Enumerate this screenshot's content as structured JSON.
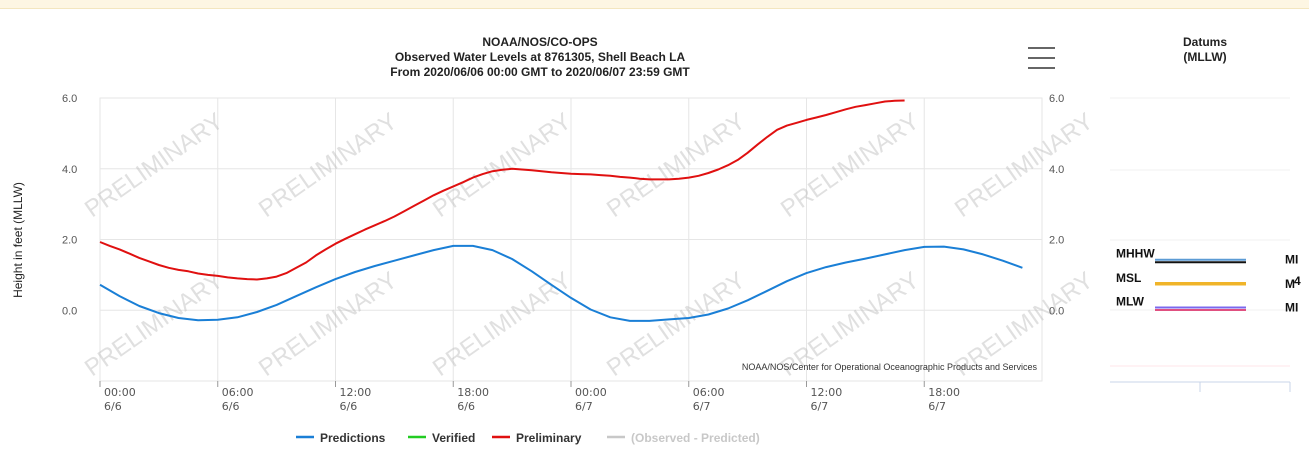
{
  "chart_data": [
    {
      "type": "line",
      "title": "NOAA/NOS/CO-OPS",
      "subtitle_lines": [
        "Observed Water Levels at 8761305, Shell Beach LA",
        "From 2020/06/06 00:00 GMT to 2020/06/07 23:59 GMT"
      ],
      "ylabel": "Height in feet (MLLW)",
      "xlabel": "",
      "ylim": [
        -2,
        6
      ],
      "xlim": [
        "2020-06-06 00:00",
        "2020-06-07 23:59"
      ],
      "y_ticks": [
        "6.0",
        "4.0",
        "2.0",
        "0.0"
      ],
      "y_tick_values": [
        6,
        4,
        2,
        0
      ],
      "x_ticks": [
        {
          "hour": 0,
          "time": "00:00",
          "date": "6/6"
        },
        {
          "hour": 6,
          "time": "06:00",
          "date": "6/6"
        },
        {
          "hour": 12,
          "time": "12:00",
          "date": "6/6"
        },
        {
          "hour": 18,
          "time": "18:00",
          "date": "6/6"
        },
        {
          "hour": 24,
          "time": "00:00",
          "date": "6/7"
        },
        {
          "hour": 30,
          "time": "06:00",
          "date": "6/7"
        },
        {
          "hour": 36,
          "time": "12:00",
          "date": "6/7"
        },
        {
          "hour": 42,
          "time": "18:00",
          "date": "6/7"
        }
      ],
      "x_hour_values": [
        0,
        1,
        2,
        3,
        4,
        5,
        6,
        7,
        8,
        9,
        10,
        11,
        12,
        13,
        14,
        15,
        16,
        17,
        18,
        19,
        20,
        21,
        22,
        23,
        24,
        25,
        26,
        27,
        28,
        29,
        30,
        31,
        32,
        33,
        34,
        35,
        36,
        37,
        38,
        39,
        40,
        41,
        42,
        43,
        44,
        45,
        46,
        47
      ],
      "series": [
        {
          "name": "Predictions",
          "color": "#1a7fd6",
          "x": [
            0,
            1,
            2,
            3,
            4,
            5,
            6,
            7,
            8,
            9,
            10,
            11,
            12,
            13,
            14,
            15,
            16,
            17,
            18,
            19,
            20,
            21,
            22,
            23,
            24,
            25,
            26,
            27,
            28,
            29,
            30,
            31,
            32,
            33,
            34,
            35,
            36,
            37,
            38,
            39,
            40,
            41,
            42,
            43,
            44,
            45,
            46,
            47
          ],
          "y": [
            0.72,
            0.4,
            0.12,
            -0.08,
            -0.22,
            -0.28,
            -0.27,
            -0.2,
            -0.05,
            0.15,
            0.4,
            0.65,
            0.88,
            1.08,
            1.25,
            1.4,
            1.55,
            1.7,
            1.82,
            1.82,
            1.7,
            1.45,
            1.1,
            0.72,
            0.35,
            0.02,
            -0.2,
            -0.3,
            -0.3,
            -0.26,
            -0.22,
            -0.12,
            0.05,
            0.28,
            0.55,
            0.82,
            1.05,
            1.22,
            1.35,
            1.46,
            1.58,
            1.7,
            1.79,
            1.8,
            1.72,
            1.58,
            1.4,
            1.2
          ]
        },
        {
          "name": "Verified",
          "color": "#22cc22",
          "x": [],
          "y": []
        },
        {
          "name": "Preliminary",
          "color": "#e01010",
          "x": [
            0,
            0.5,
            1,
            1.5,
            2,
            2.5,
            3,
            3.5,
            4,
            4.5,
            5,
            5.5,
            6,
            6.5,
            7,
            7.5,
            8,
            8.5,
            9,
            9.5,
            10,
            10.5,
            11,
            11.5,
            12,
            12.5,
            13,
            13.5,
            14,
            14.5,
            15,
            15.5,
            16,
            16.5,
            17,
            17.5,
            18,
            18.5,
            19,
            19.5,
            20,
            20.5,
            21,
            21.5,
            22,
            22.5,
            23,
            23.5,
            24,
            24.5,
            25,
            25.5,
            26,
            26.5,
            27,
            27.5,
            28,
            28.5,
            29,
            29.5,
            30,
            30.5,
            31,
            31.5,
            32,
            32.5,
            33,
            33.5,
            34,
            34.5,
            35,
            35.5,
            36,
            36.5,
            37,
            37.5,
            38,
            38.5,
            39,
            39.5,
            40,
            40.5,
            41
          ],
          "y": [
            1.93,
            1.82,
            1.72,
            1.6,
            1.48,
            1.38,
            1.28,
            1.2,
            1.14,
            1.1,
            1.04,
            1.0,
            0.97,
            0.93,
            0.9,
            0.88,
            0.87,
            0.9,
            0.95,
            1.05,
            1.2,
            1.35,
            1.55,
            1.72,
            1.88,
            2.02,
            2.15,
            2.28,
            2.4,
            2.52,
            2.65,
            2.8,
            2.95,
            3.1,
            3.25,
            3.38,
            3.5,
            3.62,
            3.75,
            3.85,
            3.93,
            3.97,
            4.0,
            3.98,
            3.96,
            3.93,
            3.9,
            3.88,
            3.86,
            3.85,
            3.84,
            3.82,
            3.8,
            3.77,
            3.75,
            3.72,
            3.7,
            3.7,
            3.7,
            3.72,
            3.75,
            3.8,
            3.88,
            3.98,
            4.1,
            4.25,
            4.45,
            4.68,
            4.9,
            5.1,
            5.22,
            5.3,
            5.38,
            5.45,
            5.52,
            5.6,
            5.68,
            5.75,
            5.8,
            5.85,
            5.9,
            5.92,
            5.93
          ]
        },
        {
          "name": "(Observed - Predicted)",
          "color": "#c8c8c8",
          "x": [],
          "y": []
        }
      ],
      "legend_position": "bottom",
      "watermark": "PRELIMINARY",
      "credit": "NOAA/NOS/Center for Operational Oceanographic Products and Services",
      "grid": true
    },
    {
      "type": "line",
      "title": "Datums",
      "subtitle": "(MLLW)",
      "ylim": [
        -2,
        6
      ],
      "datums": [
        {
          "label": "MHHW",
          "right_label": "MI",
          "value": 1.4,
          "colors": [
            "#5b9bd5",
            "#111111"
          ]
        },
        {
          "label": "MSL",
          "right_label": "M",
          "right_label_extra": "4",
          "value": 0.72,
          "colors": [
            "#f0b429"
          ]
        },
        {
          "label": "MLW",
          "right_label": "MI",
          "value": 0.05,
          "colors": [
            "#7b68ee",
            "#e05080"
          ]
        }
      ]
    }
  ],
  "menu": {
    "icon": "hamburger-menu-icon"
  }
}
